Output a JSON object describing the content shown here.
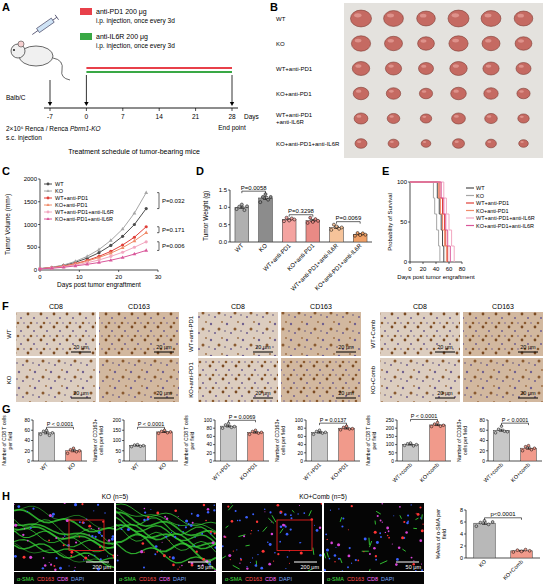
{
  "panel_labels": [
    "A",
    "B",
    "C",
    "D",
    "E",
    "F",
    "G",
    "H"
  ],
  "schematic": {
    "treatments": [
      {
        "name": "anti-PD1 200 μg",
        "detail": "i.p. injection, once every 3d",
        "color": "#e8404a"
      },
      {
        "name": "anti-IL6R 200 μg",
        "detail": "i.p. injection, once every 3d",
        "color": "#39a845"
      }
    ],
    "host": "Balb/C",
    "injection": {
      "prefix": "2×10⁶ Renca / Renca ",
      "gene": "Pbrm1-KO",
      "suffix": "s.c. injection"
    },
    "timeline_days": [
      -7,
      0,
      7,
      14,
      21,
      28
    ],
    "x_label": "Days",
    "end_label": "End point",
    "title": "Treatment schedule of tumor-bearing mice"
  },
  "photos": {
    "rows": [
      "WT",
      "KO",
      "WT+anti-PD1",
      "KO+anti-PD1",
      "WT+anti-PD1+anti-IL6R",
      "KO+anti-PD1+anti-IL6R"
    ]
  },
  "ihc": {
    "markers": [
      "CD8",
      "CD163"
    ],
    "groups": [
      [
        "WT",
        "KO"
      ],
      [
        "WT+anti-PD1",
        "KO+anti-PD1"
      ],
      [
        "WT+Comb",
        "KO+Comb"
      ]
    ],
    "scale_bar": "20 μm"
  },
  "fluorescence": {
    "titles": [
      "KO (n=5)",
      "KO+Comb (n=5)"
    ],
    "scale_bars": [
      "200 μm",
      "50 μm"
    ],
    "channels": [
      {
        "name": "α-SMA",
        "color": "#45e045"
      },
      {
        "name": "CD163",
        "color": "#ff4d4d"
      },
      {
        "name": "CD8",
        "color": "#ff70ff"
      },
      {
        "name": "DAPI",
        "color": "#7aa8ff"
      }
    ]
  },
  "chart_data": [
    {
      "type": "line",
      "x_label": "Days post tumor engraftment",
      "y_label": "Tumor Volume (mm³)",
      "x": [
        0,
        3,
        6,
        9,
        12,
        15,
        18,
        21,
        24,
        27
      ],
      "series": [
        {
          "name": "WT",
          "color": "#4d4d4d",
          "marker": "circle",
          "values": [
            30,
            55,
            100,
            170,
            260,
            380,
            540,
            740,
            1000,
            1350
          ]
        },
        {
          "name": "KO",
          "color": "#a6a6a6",
          "marker": "triangle",
          "values": [
            30,
            60,
            110,
            190,
            300,
            450,
            650,
            900,
            1250,
            1700
          ]
        },
        {
          "name": "WT+anti-PD1",
          "color": "#e0403a",
          "marker": "circle",
          "values": [
            28,
            50,
            85,
            140,
            210,
            300,
            410,
            550,
            720,
            950
          ]
        },
        {
          "name": "KO+anti-PD1",
          "color": "#f08c6a",
          "marker": "triangle",
          "values": [
            28,
            48,
            80,
            130,
            195,
            275,
            370,
            490,
            640,
            820
          ]
        },
        {
          "name": "WT+anti-PD1+anti-IL6R",
          "color": "#f2a7c0",
          "marker": "circle",
          "values": [
            25,
            42,
            70,
            110,
            160,
            220,
            300,
            390,
            500,
            620
          ]
        },
        {
          "name": "KO+anti-PD1+anti-IL6R",
          "color": "#d9579a",
          "marker": "triangle",
          "values": [
            25,
            40,
            60,
            90,
            125,
            165,
            215,
            275,
            350,
            430
          ]
        }
      ],
      "xlim": [
        0,
        30
      ],
      "xticks": [
        0,
        10,
        20,
        30
      ],
      "ylim": [
        0,
        2000
      ],
      "yticks": [
        0,
        500,
        1000,
        1500,
        2000
      ],
      "legend": "upper left",
      "annotations": [
        "P=0.032",
        "P=0.171",
        "P=0.006"
      ]
    },
    {
      "type": "bar",
      "y_label": "Tumor Weight (g)",
      "categories": [
        "WT",
        "KO",
        "WT+anti-PD1",
        "KO+anti-PD1",
        "WT+anti-PD1+anti-IL6R",
        "KO+anti-PD1+anti-IL6R"
      ],
      "values": [
        1.0,
        1.27,
        0.65,
        0.62,
        0.42,
        0.22
      ],
      "errors": [
        0.03,
        0.04,
        0.02,
        0.03,
        0.03,
        0.02
      ],
      "points": [
        [
          0.95,
          1.02,
          1.08,
          0.92,
          1.03
        ],
        [
          1.15,
          1.3,
          1.38,
          1.22,
          1.3
        ],
        [
          0.6,
          0.7,
          0.62,
          0.68,
          0.65
        ],
        [
          0.55,
          0.7,
          0.58,
          0.66,
          0.61
        ],
        [
          0.35,
          0.5,
          0.45,
          0.38,
          0.42
        ],
        [
          0.18,
          0.26,
          0.2,
          0.25,
          0.21
        ]
      ],
      "colors": [
        "#b0b0b0",
        "#8c8c8c",
        "#f4a3a0",
        "#e98a85",
        "#f6c39a",
        "#f2a268"
      ],
      "ylim": [
        0,
        1.5
      ],
      "yticks": [
        {
          "value": 0,
          "label": "0.0"
        },
        0.5,
        {
          "value": 1,
          "label": "1.0"
        },
        1.5
      ],
      "annotations": [
        "P=0.0058",
        "P=0.3298",
        "P=0.0069"
      ]
    },
    {
      "type": "step",
      "x_label": "Days post tumor engraftment",
      "y_label": "Probability of Survival",
      "series": [
        {
          "name": "WT",
          "color": "#4d4d4d",
          "x": [
            0,
            42,
            45,
            48,
            50,
            52
          ],
          "values": [
            100,
            80,
            60,
            40,
            20,
            0
          ]
        },
        {
          "name": "KO",
          "color": "#a6a6a6",
          "x": [
            0,
            36,
            38,
            41,
            44,
            46
          ],
          "values": [
            100,
            80,
            60,
            40,
            20,
            0
          ]
        },
        {
          "name": "WT+anti-PD1",
          "color": "#e0403a",
          "x": [
            0,
            46,
            50,
            53,
            55,
            58
          ],
          "values": [
            100,
            80,
            60,
            40,
            20,
            0
          ]
        },
        {
          "name": "KO+anti-PD1",
          "color": "#f08c6a",
          "x": [
            0,
            44,
            47,
            50,
            53,
            56
          ],
          "values": [
            100,
            80,
            60,
            40,
            20,
            0
          ]
        },
        {
          "name": "WT+anti-PD1+anti-IL6R",
          "color": "#f2a7c0",
          "x": [
            0,
            52,
            56,
            60,
            64,
            68
          ],
          "values": [
            100,
            80,
            60,
            40,
            20,
            0
          ]
        },
        {
          "name": "KO+anti-PD1+anti-IL6R",
          "color": "#d9579a",
          "x": [
            0,
            48,
            52,
            55,
            58,
            62
          ],
          "values": [
            100,
            80,
            60,
            40,
            20,
            0
          ]
        }
      ],
      "xlim": [
        0,
        80
      ],
      "xticks": [
        0,
        20,
        40,
        60,
        80
      ],
      "ylim": [
        0,
        100
      ],
      "yticks": [
        0,
        50,
        100
      ],
      "legend": "right"
    },
    {
      "type": "bar",
      "y_label": "Number of CD8 T cells per field",
      "categories": [
        "WT",
        "KO"
      ],
      "values": [
        55,
        20
      ],
      "errors": [
        2,
        2
      ],
      "points": [
        [
          52,
          58,
          60,
          50,
          55
        ],
        [
          15,
          22,
          25,
          18,
          20
        ]
      ],
      "colors": [
        "#c8c8c8",
        "#f19a8b"
      ],
      "ylim": [
        0,
        80
      ],
      "yticks": [
        0,
        20,
        40,
        60,
        80
      ],
      "annotations": [
        "P < 0.0001"
      ]
    },
    {
      "type": "bar",
      "y_label": "Number of CD163+ cells per field",
      "categories": [
        "WT",
        "KO"
      ],
      "values": [
        75,
        142
      ],
      "errors": [
        2,
        3
      ],
      "points": [
        [
          70,
          78,
          80,
          72,
          75
        ],
        [
          135,
          145,
          150,
          138,
          142
        ]
      ],
      "colors": [
        "#c8c8c8",
        "#f19a8b"
      ],
      "ylim": [
        0,
        200
      ],
      "yticks": [
        0,
        50,
        100,
        150,
        200
      ],
      "annotations": [
        "P < 0.0001"
      ]
    },
    {
      "type": "bar",
      "y_label": "Number of CD8 T cells per field",
      "categories": [
        "WT+PD1",
        "KO+PD1"
      ],
      "values": [
        85,
        70
      ],
      "errors": [
        2,
        2
      ],
      "points": [
        [
          80,
          88,
          92,
          82,
          84
        ],
        [
          65,
          72,
          75,
          68,
          70
        ]
      ],
      "colors": [
        "#c8c8c8",
        "#f19a8b"
      ],
      "ylim": [
        0,
        100
      ],
      "yticks": [
        0,
        20,
        40,
        60,
        80,
        100
      ],
      "annotations": [
        "P = 0.0069"
      ]
    },
    {
      "type": "bar",
      "y_label": "Number of CD163+ cells per field",
      "categories": [
        "WT+PD1",
        "KO+PD1"
      ],
      "values": [
        70,
        80
      ],
      "errors": [
        2,
        2
      ],
      "points": [
        [
          65,
          72,
          75,
          68,
          70
        ],
        [
          76,
          82,
          85,
          78,
          79
        ]
      ],
      "colors": [
        "#c8c8c8",
        "#f19a8b"
      ],
      "ylim": [
        0,
        100
      ],
      "yticks": [
        0,
        20,
        40,
        60,
        80,
        100
      ],
      "annotations": [
        "P = 0.0137"
      ]
    },
    {
      "type": "bar",
      "y_label": "Number of CD8 T cells per field",
      "categories": [
        "WT+comb",
        "KO+comb"
      ],
      "values": [
        100,
        220
      ],
      "errors": [
        3,
        4
      ],
      "points": [
        [
          95,
          105,
          110,
          92,
          100
        ],
        [
          210,
          225,
          235,
          212,
          218
        ]
      ],
      "colors": [
        "#c8c8c8",
        "#f19a8b"
      ],
      "ylim": [
        0,
        250
      ],
      "yticks": [
        0,
        50,
        100,
        150,
        200,
        250
      ],
      "annotations": [
        "P < 0.0001"
      ]
    },
    {
      "type": "bar",
      "y_label": "Number of CD163+ cells per field",
      "categories": [
        "WT+comb",
        "KO+comb"
      ],
      "values": [
        60,
        25
      ],
      "errors": [
        2,
        2
      ],
      "points": [
        [
          55,
          62,
          68,
          58,
          57
        ],
        [
          20,
          28,
          30,
          22,
          25
        ]
      ],
      "colors": [
        "#c8c8c8",
        "#f19a8b"
      ],
      "ylim": [
        0,
        80
      ],
      "yticks": [
        0,
        20,
        40,
        60,
        80
      ],
      "annotations": [
        "P < 0.0001"
      ]
    },
    {
      "type": "bar",
      "y_label": "%Area of α-SMA per field",
      "categories": [
        "KO",
        "KO+Comb"
      ],
      "values": [
        5.8,
        1.2
      ],
      "errors": [
        0.2,
        0.08
      ],
      "points": [
        [
          5.3,
          5.9,
          6.2,
          5.6,
          6.0
        ],
        [
          1.0,
          1.3,
          1.1,
          1.4,
          1.2
        ]
      ],
      "colors": [
        "#b8b8b8",
        "#f19a8b"
      ],
      "ylim": [
        0,
        8
      ],
      "yticks": [
        0,
        2,
        4,
        6,
        8
      ],
      "annotations": [
        "p<0.0001"
      ]
    }
  ]
}
